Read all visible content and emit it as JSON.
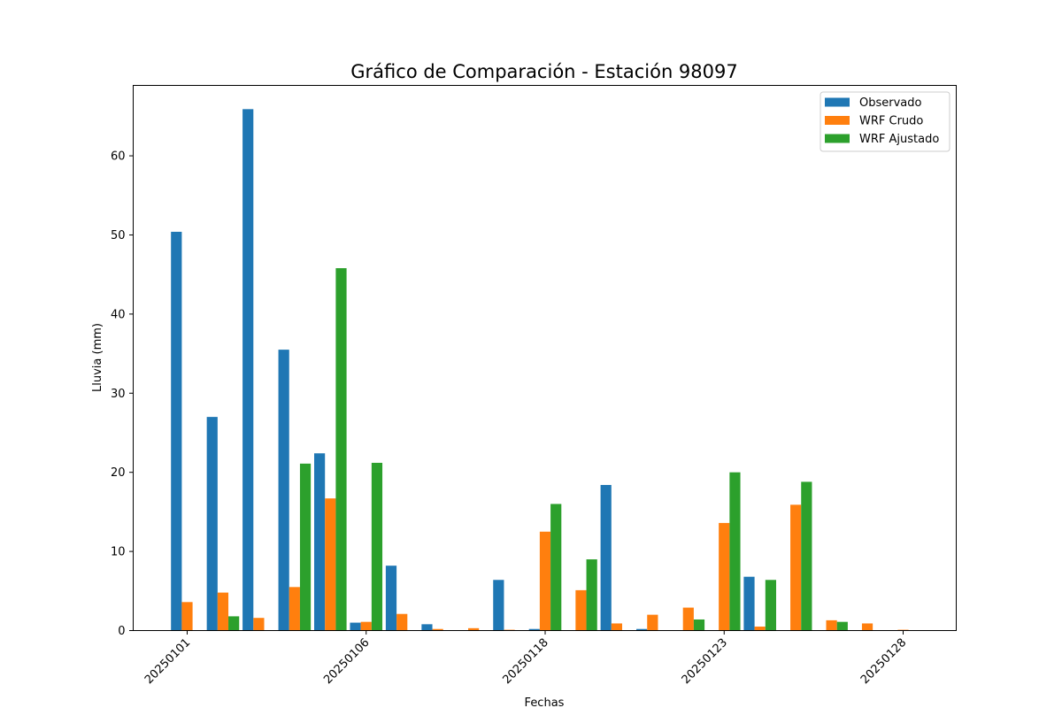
{
  "chart_data": {
    "type": "bar",
    "title": "Gráfico de Comparación - Estación 98097",
    "xlabel": "Fechas",
    "ylabel": "Lluvia (mm)",
    "ylim": [
      0,
      68.9
    ],
    "yticks": [
      0,
      10,
      20,
      30,
      40,
      50,
      60
    ],
    "xtick_labels": [
      {
        "category_index": 0,
        "label": "20250101"
      },
      {
        "category_index": 5,
        "label": "20250106"
      },
      {
        "category_index": 10,
        "label": "20250118"
      },
      {
        "category_index": 15,
        "label": "20250123"
      },
      {
        "category_index": 20,
        "label": "20250128"
      }
    ],
    "category_count": 21,
    "legend_position": "top-right",
    "series": [
      {
        "name": "Observado",
        "color": "#1f77b4",
        "values": [
          50.4,
          27.0,
          65.9,
          35.5,
          22.4,
          1.0,
          8.2,
          0.8,
          0.0,
          6.4,
          0.2,
          0.0,
          18.4,
          0.2,
          0.0,
          0.0,
          6.8,
          0.0,
          0.0,
          0.0,
          0.0
        ]
      },
      {
        "name": "WRF Crudo",
        "color": "#ff7f0e",
        "values": [
          3.6,
          4.8,
          1.6,
          5.5,
          16.7,
          1.1,
          2.1,
          0.2,
          0.3,
          0.1,
          12.5,
          5.1,
          0.9,
          2.0,
          2.9,
          13.6,
          0.5,
          15.9,
          1.3,
          0.9,
          0.1
        ]
      },
      {
        "name": "WRF Ajustado",
        "color": "#2ca02c",
        "values": [
          0.0,
          1.8,
          0.0,
          21.1,
          45.8,
          21.2,
          0.0,
          0.0,
          0.0,
          0.0,
          16.0,
          9.0,
          0.0,
          0.0,
          1.4,
          20.0,
          6.4,
          18.8,
          1.1,
          0.0,
          0.0
        ]
      }
    ]
  }
}
